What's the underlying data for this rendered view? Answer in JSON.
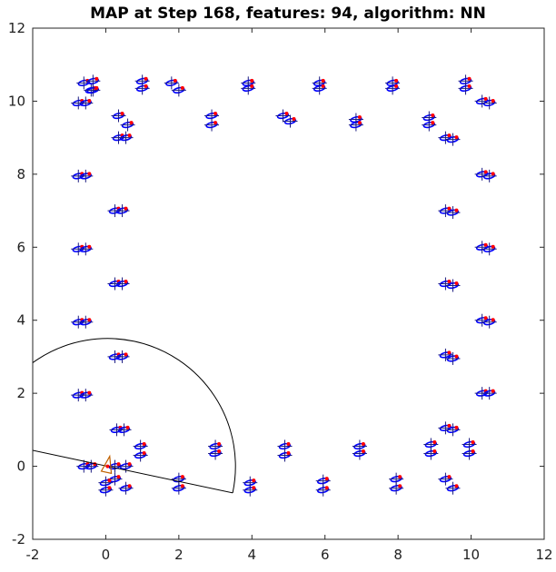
{
  "chart_data": {
    "type": "scatter",
    "title": "MAP at Step 168, features: 94, algorithm: NN",
    "xlabel": "",
    "ylabel": "",
    "xlim": [
      -2,
      12
    ],
    "ylim": [
      -2,
      12
    ],
    "xticks": [
      "-2",
      "0",
      "2",
      "4",
      "6",
      "8",
      "10",
      "12"
    ],
    "yticks": [
      "-2",
      "0",
      "2",
      "4",
      "6",
      "8",
      "10",
      "12"
    ],
    "grid": false,
    "colors": {
      "estimate": "#0000ff",
      "truth": "#ff0000",
      "sensor": "#000000",
      "robot": "#c06000"
    },
    "robot_pose": {
      "x": 0.05,
      "y": 0.0,
      "heading_deg": 78
    },
    "sensor_range": 3.5,
    "sensor_fov_deg": 180,
    "series": [
      {
        "marker": "cross-with-ellipse",
        "x": [
          -0.75,
          -0.55,
          -0.75,
          -0.55,
          -0.75,
          -0.55,
          -0.75,
          -0.55,
          -0.75,
          -0.55,
          -0.6,
          -0.4,
          -0.6,
          -0.4,
          -0.35,
          -0.35,
          0.35,
          0.55,
          0.25,
          0.45,
          0.25,
          0.45,
          0.25,
          0.45,
          0.3,
          0.5,
          0.25,
          0.55,
          0.25,
          0.55,
          0.35,
          0.6,
          0.95,
          0.95,
          1.0,
          1.0,
          0.0,
          0.0,
          1.8,
          2.0,
          2.0,
          2.0,
          2.9,
          2.9,
          3.0,
          3.0,
          3.9,
          3.9,
          3.95,
          3.95,
          4.85,
          5.05,
          4.9,
          4.9,
          5.85,
          5.85,
          5.95,
          5.95,
          6.85,
          6.85,
          6.95,
          6.95,
          7.85,
          7.85,
          7.95,
          7.95,
          8.85,
          8.85,
          8.9,
          8.9,
          9.3,
          9.5,
          9.3,
          9.5,
          9.3,
          9.5,
          9.3,
          9.5,
          9.3,
          9.5,
          9.3,
          9.5,
          9.85,
          9.85,
          9.95,
          9.95,
          10.3,
          10.5,
          10.3,
          10.5,
          10.3,
          10.5,
          10.3,
          10.5,
          10.3,
          10.5
        ],
        "y": [
          9.95,
          9.95,
          7.95,
          7.95,
          5.95,
          5.95,
          3.95,
          3.95,
          1.95,
          1.95,
          0.0,
          0.0,
          10.5,
          10.3,
          10.55,
          10.3,
          9.0,
          9.0,
          7.0,
          7.0,
          5.0,
          5.0,
          3.0,
          3.0,
          1.0,
          1.0,
          0.0,
          0.0,
          -0.35,
          -0.6,
          9.6,
          9.35,
          0.55,
          0.3,
          10.55,
          10.35,
          -0.45,
          -0.65,
          10.5,
          10.3,
          -0.35,
          -0.6,
          9.6,
          9.35,
          0.55,
          0.35,
          10.5,
          10.35,
          -0.45,
          -0.65,
          9.6,
          9.45,
          0.55,
          0.3,
          10.5,
          10.35,
          -0.4,
          -0.65,
          9.5,
          9.35,
          0.55,
          0.35,
          10.5,
          10.35,
          -0.35,
          -0.6,
          9.55,
          9.35,
          0.6,
          0.35,
          9.0,
          8.95,
          7.0,
          6.95,
          5.0,
          4.95,
          3.05,
          2.95,
          1.05,
          1.0,
          -0.35,
          -0.6,
          10.55,
          10.35,
          0.6,
          0.35,
          10.0,
          9.95,
          8.0,
          7.95,
          6.0,
          5.95,
          4.0,
          3.95,
          2.0,
          2.0
        ]
      }
    ]
  }
}
